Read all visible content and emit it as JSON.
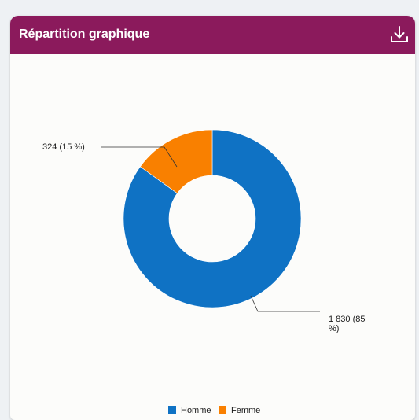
{
  "header": {
    "title": "Répartition graphique",
    "download_icon": "download-icon"
  },
  "colors": {
    "header_bg": "#8b1a5c",
    "homme": "#0f72c4",
    "femme": "#f98000"
  },
  "chart_data": {
    "type": "pie",
    "donut": true,
    "title": "",
    "legend_position": "bottom",
    "series": [
      {
        "name": "Homme",
        "value": 1830,
        "label_line1": "1 830 (85",
        "label_line2": "%)"
      },
      {
        "name": "Femme",
        "value": 324,
        "label_line1": "324 (15 %)",
        "label_line2": ""
      }
    ]
  }
}
